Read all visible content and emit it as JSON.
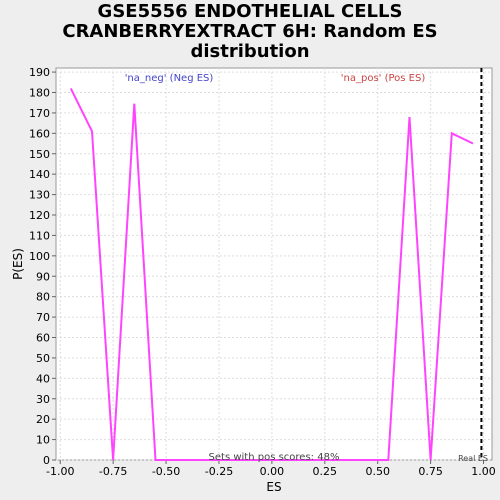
{
  "title_lines": [
    "GSE5556 ENDOTHELIAL CELLS",
    "CRANBERRYEXTRACT 6H: Random ES",
    "distribution"
  ],
  "chart_data": {
    "type": "line",
    "title": "GSE5556 ENDOTHELIAL CELLS CRANBERRYEXTRACT 6H: Random ES distribution",
    "xlabel": "ES",
    "ylabel": "P(ES)",
    "xlim": [
      -1.02,
      1.04
    ],
    "ylim": [
      0,
      192
    ],
    "xticks": [
      -1.0,
      -0.75,
      -0.5,
      -0.25,
      0.0,
      0.25,
      0.5,
      0.75,
      1.0
    ],
    "xtick_labels": [
      "-1.00",
      "-0.75",
      "-0.50",
      "-0.25",
      "0.00",
      "0.25",
      "0.50",
      "0.75",
      "1.00"
    ],
    "yticks": [
      0,
      10,
      20,
      30,
      40,
      50,
      60,
      70,
      80,
      90,
      100,
      110,
      120,
      130,
      140,
      150,
      160,
      170,
      180,
      190
    ],
    "grid": true,
    "series": [
      {
        "name": "Random ES distribution",
        "color": "#ff44ff",
        "x": [
          -0.95,
          -0.85,
          -0.75,
          -0.65,
          -0.55,
          -0.45,
          -0.35,
          -0.25,
          -0.15,
          -0.05,
          0.05,
          0.15,
          0.25,
          0.35,
          0.45,
          0.55,
          0.65,
          0.75,
          0.85,
          0.95
        ],
        "y": [
          182,
          161,
          0,
          174.5,
          0,
          0,
          0,
          0,
          0,
          0,
          0,
          0,
          0,
          0,
          0,
          0,
          168,
          0,
          160,
          155
        ]
      }
    ],
    "real_es": 0.99,
    "annotations": {
      "neg_label": "'na_neg' (Neg ES)",
      "pos_label": "'na_pos' (Pos ES)",
      "sets_label": "Sets with pos scores: 48%",
      "real_es_label": "Real ES"
    },
    "colors": {
      "neg": "#4444cc",
      "pos": "#cc4444",
      "line": "#ff44ff",
      "grid": "#dddddd"
    }
  }
}
